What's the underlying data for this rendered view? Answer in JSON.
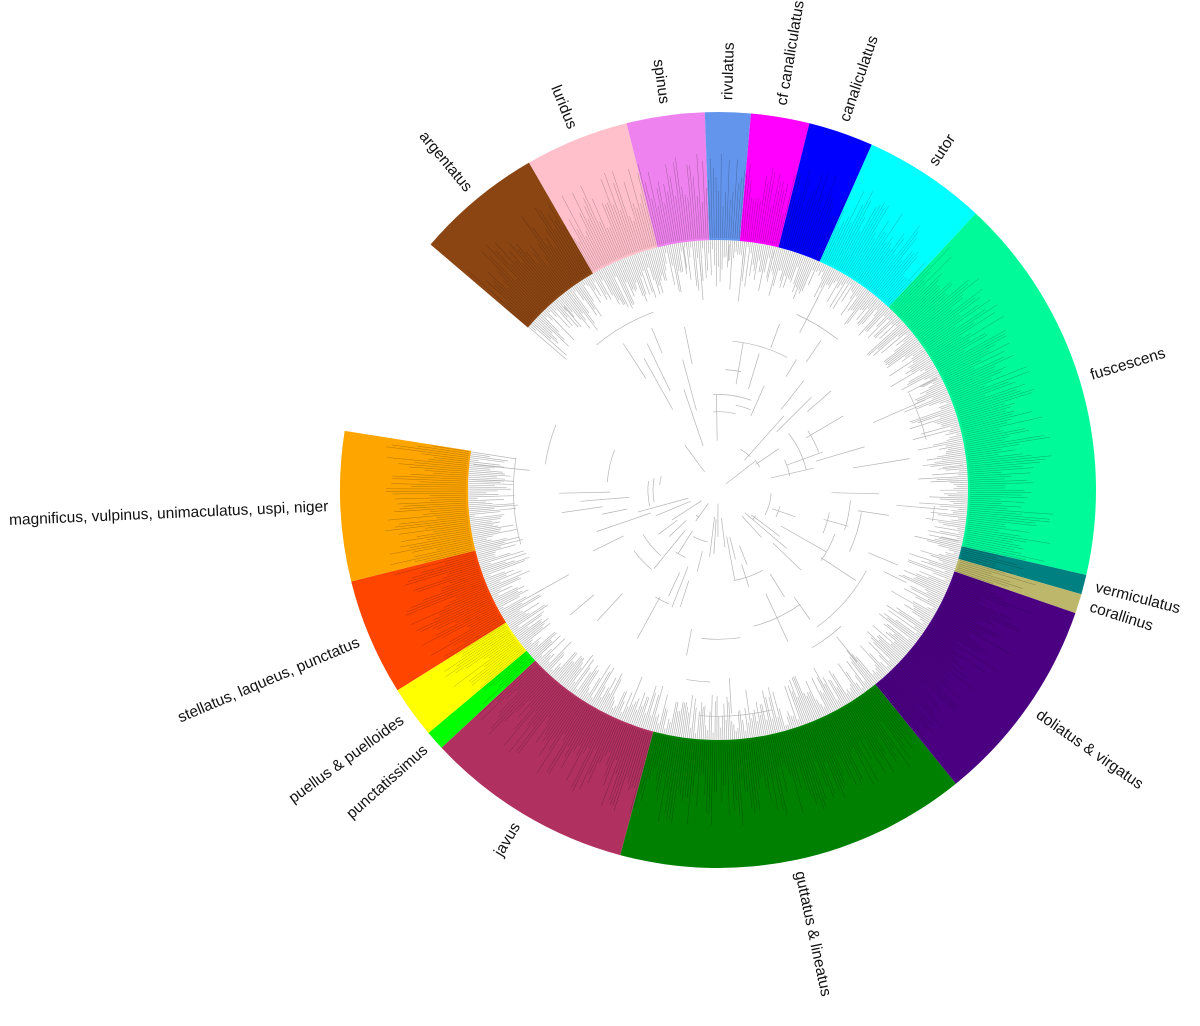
{
  "diagram": {
    "type": "circular-phylogeny",
    "clades": [
      {
        "name": "argentatus",
        "color": "#8B4513",
        "start": -49.5,
        "end": -30
      },
      {
        "name": "luridus",
        "color": "#FFC0CB",
        "start": -30,
        "end": -14
      },
      {
        "name": "spinus",
        "color": "#EE82EE",
        "start": -14,
        "end": -2
      },
      {
        "name": "rivulatus",
        "color": "#6495ED",
        "start": -2,
        "end": 5
      },
      {
        "name": "cf canaliculatus",
        "color": "#FF00FF",
        "start": 5,
        "end": 14
      },
      {
        "name": "canaliculatus",
        "color": "#0000FF",
        "start": 14,
        "end": 24
      },
      {
        "name": "sutor",
        "color": "#00FFFF",
        "start": 24,
        "end": 43
      },
      {
        "name": "fuscescens",
        "color": "#00FA9A",
        "start": 43,
        "end": 103
      },
      {
        "name": "vermiculatus",
        "color": "#008080",
        "start": 103,
        "end": 106
      },
      {
        "name": "corallinus",
        "color": "#BDB76B",
        "start": 106,
        "end": 109
      },
      {
        "name": "doliatus & virgatus",
        "color": "#4B0082",
        "start": 109,
        "end": 141
      },
      {
        "name": "guttatus & lineatus",
        "color": "#008000",
        "start": 141,
        "end": 195
      },
      {
        "name": "javus",
        "color": "#B03060",
        "start": 195,
        "end": 227
      },
      {
        "name": "punctatissimus",
        "color": "#00FF00",
        "start": 227,
        "end": 230
      },
      {
        "name": "puellus & puelloides",
        "color": "#FFFF00",
        "start": 230,
        "end": 238
      },
      {
        "name": "stellatus, laqueus, punctatus",
        "color": "#FF4500",
        "start": 238,
        "end": 256
      },
      {
        "name": "magnificus, vulpinus, unimaculatus, uspi, niger",
        "color": "#FFA500",
        "start": 256,
        "end": 279
      }
    ]
  }
}
